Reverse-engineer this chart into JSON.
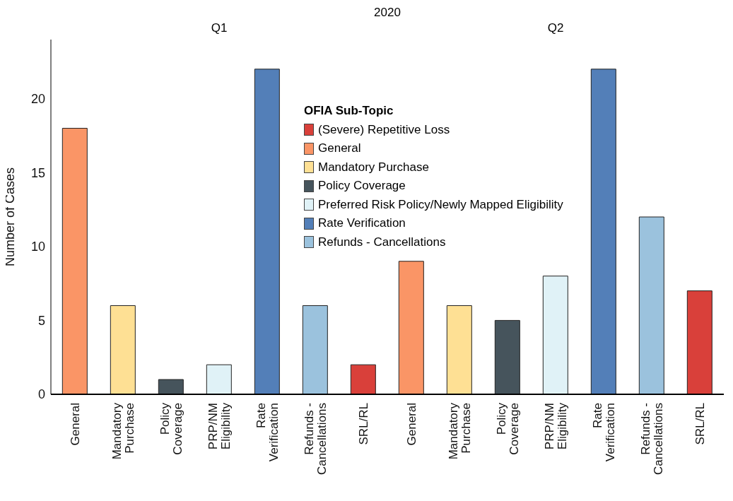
{
  "chart_data": {
    "type": "bar",
    "stacked": true,
    "ylabel": "Number of Cases",
    "legend_title": "OFIA Sub-Topic",
    "legend": "top",
    "grid": false,
    "annotations": [
      "2020",
      "Q1",
      "Q2"
    ],
    "categories": [
      "General",
      "Mandatory Purchase",
      "Policy Coverage",
      "PRP/NM Eligibility",
      "Rate Verification",
      "Refunds - Cancellations",
      "SRL/RL",
      "General",
      "Mandatory Purchase",
      "Policy Coverage",
      "PRP/NM Eligibility",
      "Rate Verification",
      "Refunds - Cancellations",
      "SRL/RL"
    ],
    "ylim": [
      0,
      24
    ],
    "yticks": [
      0,
      5,
      10,
      15,
      20
    ],
    "series": [
      {
        "name": "(Severe) Repetitive Loss",
        "color": "#d9403a",
        "values": [
          null,
          null,
          null,
          null,
          null,
          null,
          2,
          null,
          null,
          null,
          null,
          null,
          null,
          7
        ]
      },
      {
        "name": "General",
        "color": "#fa9566",
        "values": [
          18,
          null,
          null,
          null,
          null,
          null,
          null,
          9,
          null,
          null,
          null,
          null,
          null,
          null
        ]
      },
      {
        "name": "Mandatory Purchase",
        "color": "#fee094",
        "values": [
          null,
          6,
          null,
          null,
          null,
          null,
          null,
          null,
          6,
          null,
          null,
          null,
          null,
          null
        ]
      },
      {
        "name": "Policy Coverage",
        "color": "#46545c",
        "values": [
          null,
          null,
          1,
          null,
          null,
          null,
          null,
          null,
          null,
          5,
          null,
          null,
          null,
          null
        ]
      },
      {
        "name": "Preferred Risk Policy/Newly Mapped Eligibility",
        "color": "#e0f2f7",
        "values": [
          null,
          null,
          null,
          2,
          null,
          null,
          null,
          null,
          null,
          null,
          8,
          null,
          null,
          null
        ]
      },
      {
        "name": "Rate Verification",
        "color": "#537fb8",
        "values": [
          null,
          null,
          null,
          null,
          22,
          null,
          null,
          null,
          null,
          null,
          null,
          22,
          null,
          null
        ]
      },
      {
        "name": "Refunds - Cancellations",
        "color": "#9bc2dd",
        "values": [
          null,
          null,
          null,
          null,
          null,
          6,
          null,
          null,
          null,
          null,
          null,
          null,
          12,
          null
        ]
      }
    ]
  }
}
